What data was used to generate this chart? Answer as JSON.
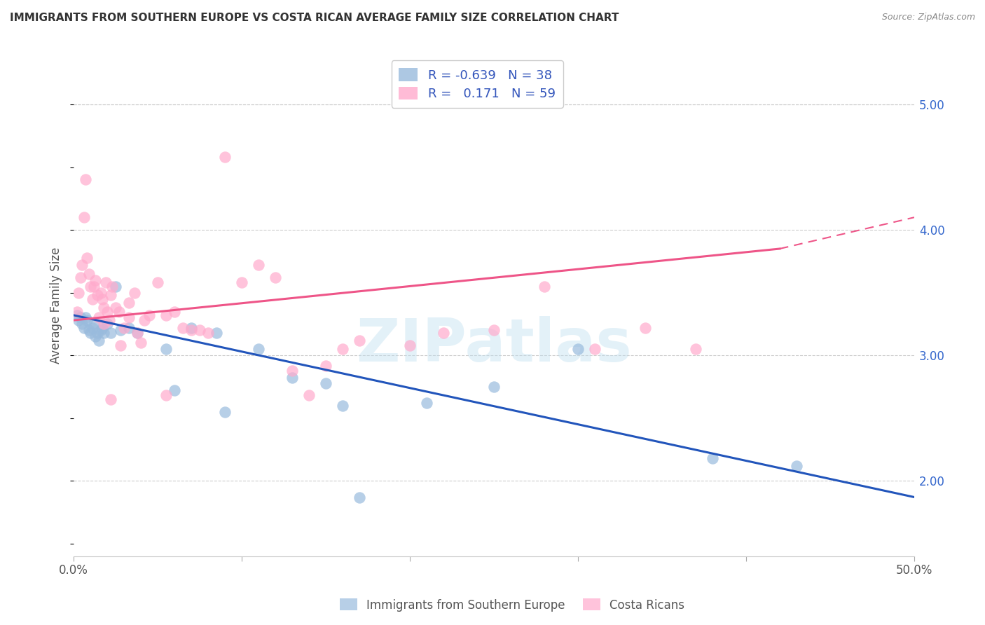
{
  "title": "IMMIGRANTS FROM SOUTHERN EUROPE VS COSTA RICAN AVERAGE FAMILY SIZE CORRELATION CHART",
  "source": "Source: ZipAtlas.com",
  "ylabel": "Average Family Size",
  "xlim": [
    0.0,
    0.5
  ],
  "ylim": [
    1.4,
    5.4
  ],
  "yticks": [
    2.0,
    3.0,
    4.0,
    5.0
  ],
  "xticks": [
    0.0,
    0.1,
    0.2,
    0.3,
    0.4,
    0.5
  ],
  "xticklabels": [
    "0.0%",
    "",
    "",
    "",
    "",
    "50.0%"
  ],
  "blue_color": "#99BBDD",
  "pink_color": "#FFAACC",
  "blue_line_color": "#2255BB",
  "pink_line_color": "#EE5588",
  "blue_R": -0.639,
  "blue_N": 38,
  "pink_R": 0.171,
  "pink_N": 59,
  "legend_label_blue": "Immigrants from Southern Europe",
  "legend_label_pink": "Costa Ricans",
  "watermark": "ZIPatlas",
  "blue_line_x0": 0.0,
  "blue_line_y0": 3.32,
  "blue_line_x1": 0.5,
  "blue_line_y1": 1.87,
  "pink_line_x0": 0.0,
  "pink_line_y0": 3.28,
  "pink_line_x1_solid": 0.42,
  "pink_line_y1_solid": 3.85,
  "pink_line_x1_dash": 0.5,
  "pink_line_y1_dash": 4.1,
  "blue_x": [
    0.002,
    0.003,
    0.004,
    0.005,
    0.006,
    0.007,
    0.008,
    0.009,
    0.01,
    0.011,
    0.012,
    0.013,
    0.014,
    0.015,
    0.016,
    0.017,
    0.018,
    0.02,
    0.022,
    0.025,
    0.028,
    0.033,
    0.038,
    0.055,
    0.07,
    0.085,
    0.11,
    0.13,
    0.15,
    0.17,
    0.21,
    0.25,
    0.3,
    0.38,
    0.43,
    0.16,
    0.09,
    0.06
  ],
  "blue_y": [
    3.32,
    3.28,
    3.3,
    3.25,
    3.22,
    3.3,
    3.28,
    3.2,
    3.18,
    3.22,
    3.25,
    3.15,
    3.18,
    3.12,
    3.2,
    3.22,
    3.18,
    3.25,
    3.18,
    3.55,
    3.2,
    3.22,
    3.18,
    3.05,
    3.22,
    3.18,
    3.05,
    2.82,
    2.78,
    1.87,
    2.62,
    2.75,
    3.05,
    2.18,
    2.12,
    2.6,
    2.55,
    2.72
  ],
  "pink_x": [
    0.002,
    0.003,
    0.004,
    0.005,
    0.006,
    0.007,
    0.008,
    0.009,
    0.01,
    0.011,
    0.012,
    0.013,
    0.014,
    0.015,
    0.016,
    0.017,
    0.018,
    0.019,
    0.02,
    0.021,
    0.022,
    0.023,
    0.025,
    0.027,
    0.03,
    0.033,
    0.036,
    0.04,
    0.045,
    0.05,
    0.055,
    0.06,
    0.065,
    0.07,
    0.075,
    0.08,
    0.09,
    0.1,
    0.11,
    0.12,
    0.13,
    0.14,
    0.15,
    0.16,
    0.17,
    0.2,
    0.22,
    0.25,
    0.28,
    0.31,
    0.34,
    0.37,
    0.033,
    0.018,
    0.028,
    0.042,
    0.055,
    0.038,
    0.022
  ],
  "pink_y": [
    3.35,
    3.5,
    3.62,
    3.72,
    4.1,
    4.4,
    3.78,
    3.65,
    3.55,
    3.45,
    3.55,
    3.6,
    3.48,
    3.3,
    3.5,
    3.45,
    3.38,
    3.58,
    3.35,
    3.28,
    3.48,
    3.55,
    3.38,
    3.35,
    3.22,
    3.3,
    3.5,
    3.1,
    3.32,
    3.58,
    2.68,
    3.35,
    3.22,
    3.2,
    3.2,
    3.18,
    4.58,
    3.58,
    3.72,
    3.62,
    2.88,
    2.68,
    2.92,
    3.05,
    3.12,
    3.08,
    3.18,
    3.2,
    3.55,
    3.05,
    3.22,
    3.05,
    3.42,
    3.25,
    3.08,
    3.28,
    3.32,
    3.18,
    2.65
  ]
}
